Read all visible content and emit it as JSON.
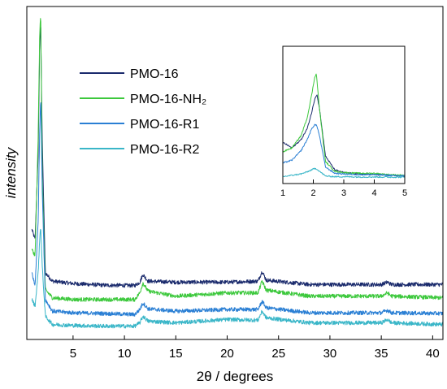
{
  "chart_data": [
    {
      "type": "line",
      "xlabel": "2θ / degrees",
      "ylabel": "intensity",
      "xlim": [
        0.5,
        41
      ],
      "ylim": [
        0,
        1
      ],
      "x_ticks": [
        5,
        10,
        15,
        20,
        25,
        30,
        35,
        40
      ],
      "y_ticks": [],
      "grid": false,
      "legend_position": "top-center",
      "series": [
        {
          "name": "PMO-16",
          "color": "#1a2a6c",
          "points": [
            [
              1.0,
              0.33
            ],
            [
              1.3,
              0.3
            ],
            [
              1.6,
              0.55
            ],
            [
              1.75,
              0.88
            ],
            [
              1.85,
              0.95
            ],
            [
              2.0,
              0.6
            ],
            [
              2.3,
              0.2
            ],
            [
              3,
              0.175
            ],
            [
              5,
              0.168
            ],
            [
              8,
              0.163
            ],
            [
              11,
              0.162
            ],
            [
              11.5,
              0.172
            ],
            [
              11.8,
              0.195
            ],
            [
              12.3,
              0.175
            ],
            [
              15,
              0.172
            ],
            [
              20,
              0.172
            ],
            [
              23,
              0.175
            ],
            [
              23.4,
              0.205
            ],
            [
              23.8,
              0.178
            ],
            [
              28,
              0.165
            ],
            [
              35,
              0.165
            ],
            [
              35.6,
              0.172
            ],
            [
              36,
              0.165
            ],
            [
              41,
              0.165
            ]
          ]
        },
        {
          "name": "PMO-16-NH₂",
          "color": "#3cc83c",
          "points": [
            [
              1.0,
              0.27
            ],
            [
              1.3,
              0.25
            ],
            [
              1.6,
              0.6
            ],
            [
              1.75,
              0.92
            ],
            [
              1.85,
              0.98
            ],
            [
              2.0,
              0.5
            ],
            [
              2.3,
              0.15
            ],
            [
              3,
              0.125
            ],
            [
              5,
              0.12
            ],
            [
              8,
              0.12
            ],
            [
              11,
              0.12
            ],
            [
              11.5,
              0.14
            ],
            [
              11.8,
              0.17
            ],
            [
              12.3,
              0.145
            ],
            [
              15,
              0.13
            ],
            [
              20,
              0.14
            ],
            [
              23,
              0.14
            ],
            [
              23.4,
              0.175
            ],
            [
              23.8,
              0.148
            ],
            [
              28,
              0.13
            ],
            [
              35,
              0.13
            ],
            [
              35.6,
              0.14
            ],
            [
              36,
              0.13
            ],
            [
              41,
              0.125
            ]
          ]
        },
        {
          "name": "PMO-16-R1",
          "color": "#2a7fd4",
          "points": [
            [
              1.0,
              0.2
            ],
            [
              1.3,
              0.16
            ],
            [
              1.6,
              0.35
            ],
            [
              1.75,
              0.63
            ],
            [
              1.85,
              0.73
            ],
            [
              2.0,
              0.45
            ],
            [
              2.3,
              0.12
            ],
            [
              3,
              0.085
            ],
            [
              5,
              0.08
            ],
            [
              8,
              0.078
            ],
            [
              11,
              0.075
            ],
            [
              11.5,
              0.09
            ],
            [
              11.8,
              0.11
            ],
            [
              12.3,
              0.092
            ],
            [
              15,
              0.085
            ],
            [
              20,
              0.09
            ],
            [
              23,
              0.09
            ],
            [
              23.4,
              0.115
            ],
            [
              23.8,
              0.095
            ],
            [
              28,
              0.08
            ],
            [
              35,
              0.08
            ],
            [
              35.6,
              0.088
            ],
            [
              36,
              0.08
            ],
            [
              41,
              0.078
            ]
          ]
        },
        {
          "name": "PMO-16-R2",
          "color": "#3ab6c8",
          "points": [
            [
              1.0,
              0.12
            ],
            [
              1.3,
              0.1
            ],
            [
              1.6,
              0.2
            ],
            [
              1.75,
              0.3
            ],
            [
              1.85,
              0.34
            ],
            [
              2.0,
              0.22
            ],
            [
              2.3,
              0.07
            ],
            [
              3,
              0.045
            ],
            [
              5,
              0.042
            ],
            [
              8,
              0.04
            ],
            [
              11,
              0.04
            ],
            [
              11.5,
              0.05
            ],
            [
              11.8,
              0.07
            ],
            [
              12.3,
              0.055
            ],
            [
              15,
              0.05
            ],
            [
              20,
              0.06
            ],
            [
              23,
              0.058
            ],
            [
              23.4,
              0.085
            ],
            [
              23.8,
              0.065
            ],
            [
              28,
              0.05
            ],
            [
              35,
              0.05
            ],
            [
              35.6,
              0.06
            ],
            [
              36,
              0.05
            ],
            [
              41,
              0.045
            ]
          ]
        }
      ]
    },
    {
      "type": "line",
      "xlabel": "",
      "ylabel": "",
      "xlim": [
        1,
        5
      ],
      "ylim": [
        0,
        1
      ],
      "x_ticks": [
        1,
        2,
        3,
        4,
        5
      ],
      "grid": false,
      "series": [
        {
          "color": "#1a2a6c",
          "points": [
            [
              1.0,
              0.3
            ],
            [
              1.3,
              0.26
            ],
            [
              1.6,
              0.32
            ],
            [
              1.8,
              0.4
            ],
            [
              1.95,
              0.52
            ],
            [
              2.05,
              0.62
            ],
            [
              2.12,
              0.65
            ],
            [
              2.2,
              0.55
            ],
            [
              2.4,
              0.2
            ],
            [
              2.7,
              0.1
            ],
            [
              3,
              0.08
            ],
            [
              3.5,
              0.07
            ],
            [
              4,
              0.065
            ],
            [
              4.5,
              0.06
            ],
            [
              5,
              0.055
            ]
          ]
        },
        {
          "color": "#3cc83c",
          "points": [
            [
              1.0,
              0.23
            ],
            [
              1.3,
              0.26
            ],
            [
              1.6,
              0.35
            ],
            [
              1.8,
              0.48
            ],
            [
              1.95,
              0.65
            ],
            [
              2.05,
              0.78
            ],
            [
              2.1,
              0.8
            ],
            [
              2.2,
              0.55
            ],
            [
              2.4,
              0.16
            ],
            [
              2.7,
              0.09
            ],
            [
              3,
              0.08
            ],
            [
              3.5,
              0.075
            ],
            [
              4,
              0.075
            ],
            [
              4.5,
              0.065
            ],
            [
              5,
              0.06
            ]
          ]
        },
        {
          "color": "#2a7fd4",
          "points": [
            [
              1.0,
              0.15
            ],
            [
              1.3,
              0.17
            ],
            [
              1.6,
              0.24
            ],
            [
              1.8,
              0.32
            ],
            [
              1.95,
              0.4
            ],
            [
              2.05,
              0.43
            ],
            [
              2.12,
              0.42
            ],
            [
              2.2,
              0.35
            ],
            [
              2.4,
              0.12
            ],
            [
              2.7,
              0.075
            ],
            [
              3,
              0.07
            ],
            [
              3.5,
              0.065
            ],
            [
              4,
              0.065
            ],
            [
              4.5,
              0.06
            ],
            [
              5,
              0.055
            ]
          ]
        },
        {
          "color": "#3ab6c8",
          "points": [
            [
              1.0,
              0.05
            ],
            [
              1.3,
              0.06
            ],
            [
              1.6,
              0.07
            ],
            [
              1.8,
              0.085
            ],
            [
              1.95,
              0.1
            ],
            [
              2.05,
              0.11
            ],
            [
              2.12,
              0.105
            ],
            [
              2.2,
              0.09
            ],
            [
              2.4,
              0.055
            ],
            [
              2.7,
              0.05
            ],
            [
              3,
              0.05
            ],
            [
              3.5,
              0.048
            ],
            [
              4,
              0.048
            ],
            [
              4.5,
              0.047
            ],
            [
              5,
              0.046
            ]
          ]
        }
      ]
    }
  ]
}
